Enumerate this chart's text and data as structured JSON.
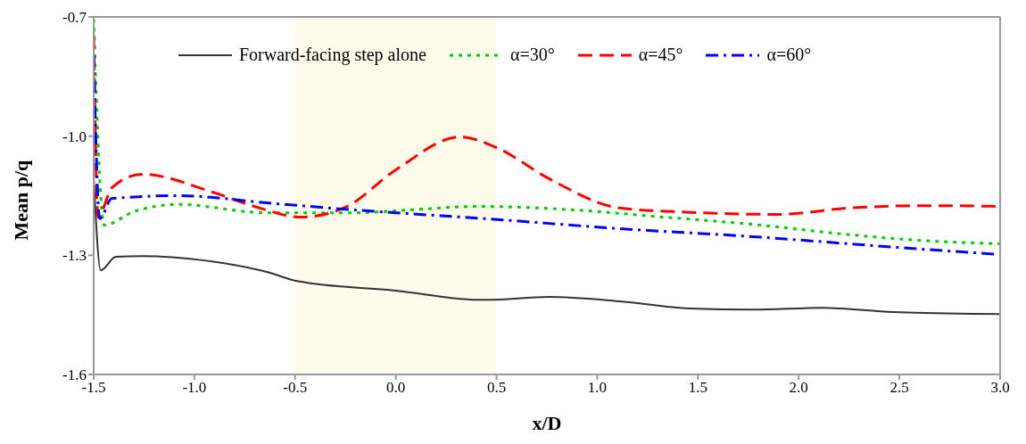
{
  "chart_data": {
    "type": "line",
    "xlabel": "x/D",
    "ylabel": "Mean p/q",
    "xlim": [
      -1.5,
      3.0
    ],
    "ylim": [
      -1.6,
      -0.7
    ],
    "xticks": [
      {
        "value": -1.5,
        "label": "-1.5"
      },
      {
        "value": -1.0,
        "label": "-1.0"
      },
      {
        "value": -0.5,
        "label": "-0.5"
      },
      {
        "value": 0,
        "label": "0.0"
      },
      {
        "value": 0.5,
        "label": "0.5"
      },
      {
        "value": 1.0,
        "label": "1.0"
      },
      {
        "value": 1.5,
        "label": "1.5"
      },
      {
        "value": 2.0,
        "label": "2.0"
      },
      {
        "value": 2.5,
        "label": "2.5"
      },
      {
        "value": 3.0,
        "label": "3.0"
      }
    ],
    "yticks": [
      {
        "value": -1.6,
        "label": "-1.6"
      },
      {
        "value": -1.3,
        "label": "-1.3"
      },
      {
        "value": -1.0,
        "label": "-1.0"
      },
      {
        "value": -0.7,
        "label": "-0.7"
      }
    ],
    "legend": "top",
    "bands": [
      {
        "axis": "x",
        "from": -0.5,
        "to": 0.5,
        "color": "#fdfbea"
      }
    ],
    "series": [
      {
        "name": "Forward-facing step alone",
        "color": "#333333",
        "line_style": "solid",
        "x": [
          -1.5,
          -1.465,
          -1.39,
          -1.26,
          -0.95,
          -0.64,
          -0.49,
          0,
          0.41,
          0.45,
          0.76,
          1.11,
          1.46,
          1.77,
          2.12,
          2.47,
          3.0
        ],
        "values": [
          -1.1,
          -1.338,
          -1.304,
          -1.302,
          -1.313,
          -1.342,
          -1.365,
          -1.389,
          -1.412,
          -1.412,
          -1.405,
          -1.416,
          -1.434,
          -1.437,
          -1.432,
          -1.443,
          -1.448
        ]
      },
      {
        "name": "α=30°",
        "color": "#00cc00",
        "line_style": "dotted",
        "x": [
          -1.5,
          -1.448,
          -1.3,
          -1.08,
          -0.64,
          -0.2,
          0.06,
          0.41,
          0.89,
          1.33,
          1.77,
          2.21,
          2.65,
          3.0
        ],
        "values": [
          -0.705,
          -1.224,
          -1.19,
          -1.172,
          -1.193,
          -1.193,
          -1.186,
          -1.177,
          -1.186,
          -1.204,
          -1.222,
          -1.246,
          -1.264,
          -1.271
        ]
      },
      {
        "name": "α=45°",
        "color": "#ff0000",
        "line_style": "dashed",
        "x": [
          -1.5,
          -1.478,
          -1.41,
          -1.26,
          -0.91,
          -0.69,
          -0.47,
          -0.25,
          0,
          0.32,
          0.5,
          0.76,
          1.11,
          1.38,
          1.9,
          2.25,
          2.65,
          3.0
        ],
        "values": [
          -0.745,
          -1.204,
          -1.13,
          -1.096,
          -1.141,
          -1.179,
          -1.204,
          -1.179,
          -1.085,
          -1.002,
          -1.029,
          -1.107,
          -1.181,
          -1.19,
          -1.197,
          -1.181,
          -1.175,
          -1.177
        ]
      },
      {
        "name": "α=60°",
        "color": "#0000ff",
        "line_style": "dashdot",
        "x": [
          -1.5,
          -1.47,
          -1.41,
          -1.08,
          -0.64,
          -0.2,
          0,
          0.45,
          1.11,
          1.77,
          2.43,
          3.0
        ],
        "values": [
          -0.794,
          -1.208,
          -1.157,
          -1.15,
          -1.168,
          -1.186,
          -1.193,
          -1.208,
          -1.233,
          -1.253,
          -1.278,
          -1.298
        ]
      }
    ]
  }
}
